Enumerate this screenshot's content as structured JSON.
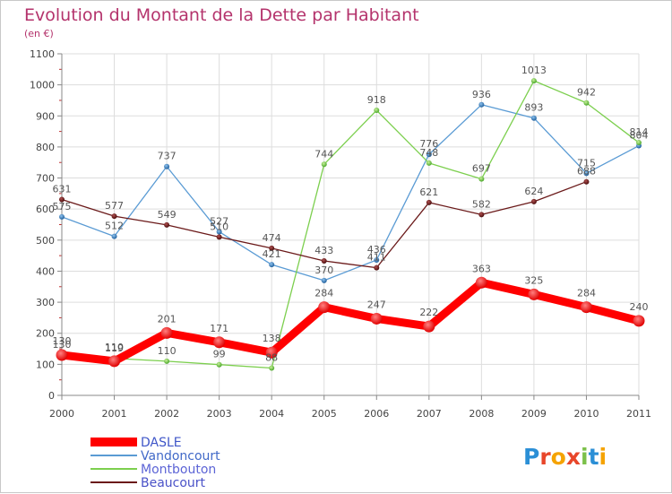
{
  "title": "Evolution du Montant de la Dette par Habitant",
  "subtitle": "(en €)",
  "logo_text": "Proxiti",
  "chart_data": {
    "type": "line",
    "title": "Evolution du Montant de la Dette par Habitant",
    "subtitle": "(en €)",
    "x": [
      "2000",
      "2001",
      "2002",
      "2003",
      "2004",
      "2005",
      "2006",
      "2007",
      "2008",
      "2009",
      "2010",
      "2011"
    ],
    "ylim": [
      0,
      1100
    ],
    "yticks": [
      "0",
      "100",
      "200",
      "300",
      "400",
      "500",
      "600",
      "700",
      "800",
      "900",
      "1000",
      "1100"
    ],
    "grid": true,
    "legend": "bottom-left",
    "series": [
      {
        "name": "DASLE",
        "color": "#ff0000",
        "values": [
          130,
          110,
          201,
          171,
          138,
          284,
          247,
          222,
          363,
          325,
          284,
          240
        ],
        "labels": [
          "130",
          "110",
          "201",
          "171",
          "138",
          "284",
          "247",
          "222",
          "363",
          "325",
          "284",
          "240"
        ]
      },
      {
        "name": "Vandoncourt",
        "color": "#5a9bd4",
        "values": [
          575,
          512,
          737,
          527,
          421,
          370,
          436,
          776,
          936,
          893,
          715,
          804
        ],
        "labels": [
          "575",
          "512",
          "737",
          "527",
          "421",
          "370",
          "436",
          "776",
          "936",
          "893",
          "715",
          "804"
        ]
      },
      {
        "name": "Montbouton",
        "color": "#7ccf4e",
        "values": [
          130,
          119,
          110,
          99,
          88,
          744,
          918,
          748,
          697,
          1013,
          942,
          814
        ],
        "labels": [
          "130",
          "119",
          "110",
          "99",
          "88",
          "744",
          "918",
          "748",
          "697",
          "1013",
          "942",
          "814"
        ]
      },
      {
        "name": "Beaucourt",
        "color": "#6b1a1a",
        "values": [
          631,
          577,
          549,
          510,
          474,
          433,
          411,
          621,
          582,
          624,
          688,
          null
        ],
        "labels": [
          "631",
          "577",
          "549",
          "510",
          "474",
          "433",
          "411",
          "621",
          "582",
          "624",
          "688",
          ""
        ]
      }
    ]
  }
}
